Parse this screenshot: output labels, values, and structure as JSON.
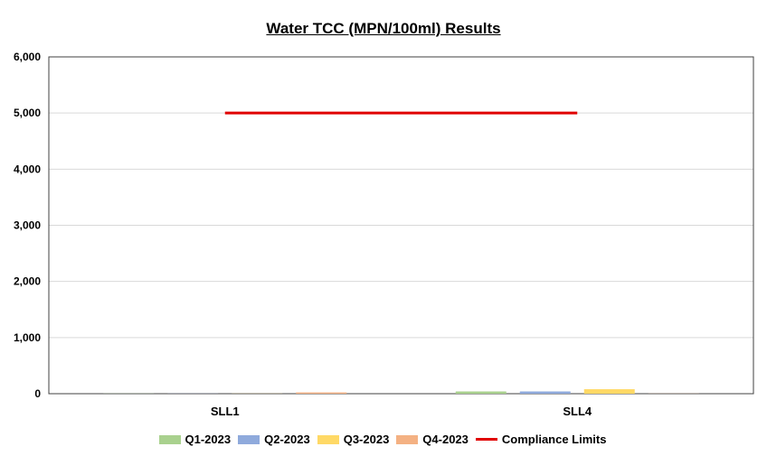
{
  "chart_data": {
    "type": "bar",
    "title": "Water TCC (MPN/100ml) Results",
    "xlabel": "",
    "ylabel": "",
    "categories": [
      "SLL1",
      "SLL4"
    ],
    "series": [
      {
        "name": "Q1-2023",
        "values": [
          2,
          40
        ],
        "color": "#a9d18e"
      },
      {
        "name": "Q2-2023",
        "values": [
          2,
          40
        ],
        "color": "#8faadc"
      },
      {
        "name": "Q3-2023",
        "values": [
          2,
          80
        ],
        "color": "#ffd966"
      },
      {
        "name": "Q4-2023",
        "values": [
          23,
          2
        ],
        "color": "#f4b183"
      }
    ],
    "reference_line": {
      "name": "Compliance Limits",
      "value": 5000,
      "color": "#e00000"
    },
    "ylim": [
      0,
      6000
    ],
    "yticks": [
      "0",
      "1,000",
      "2,000",
      "3,000",
      "4,000",
      "5,000",
      "6,000"
    ],
    "grid": true,
    "legend_position": "bottom"
  }
}
